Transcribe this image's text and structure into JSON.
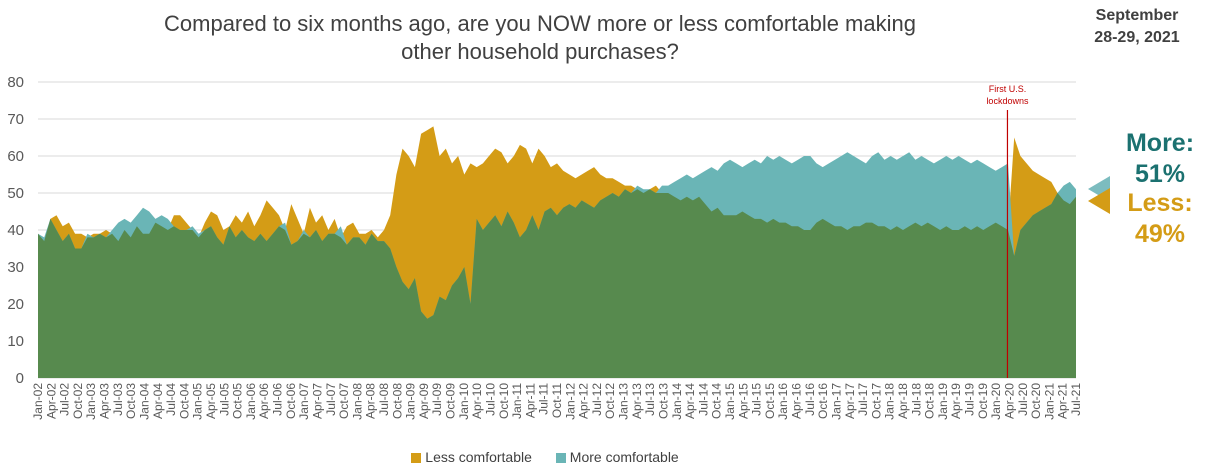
{
  "title_line1": "Compared to six months ago, are you NOW more or less comfortable making",
  "title_line2": "other household purchases?",
  "date_line1": "September",
  "date_line2": "28-29, 2021",
  "callouts": {
    "more": "More:",
    "more_value": "51%",
    "less": "Less:",
    "less_value": "49%"
  },
  "annotation": {
    "line1": "First U.S.",
    "line2": "lockdowns",
    "date": "Apr-20"
  },
  "colors": {
    "less": "#d49c16",
    "more": "#6ab5b6",
    "overlap": "#578a4e",
    "more_text": "#1b7170",
    "annotation": "#c00000",
    "grid": "#d9d9d9",
    "axis_text": "#595959"
  },
  "chart_data": {
    "type": "area",
    "title": "Compared to six months ago, are you NOW more or less comfortable making other household purchases?",
    "ylim": [
      0,
      80
    ],
    "yticks": [
      0,
      10,
      20,
      30,
      40,
      50,
      60,
      70,
      80
    ],
    "grid": true,
    "legend_position": "bottom",
    "x_tick_labels": [
      "Jan-02",
      "Apr-02",
      "Jul-02",
      "Oct-02",
      "Jan-03",
      "Apr-03",
      "Jul-03",
      "Oct-03",
      "Jan-04",
      "Apr-04",
      "Jul-04",
      "Oct-04",
      "Jan-05",
      "Apr-05",
      "Jul-05",
      "Oct-05",
      "Jan-06",
      "Apr-06",
      "Jul-06",
      "Oct-06",
      "Jan-07",
      "Apr-07",
      "Jul-07",
      "Oct-07",
      "Jan-08",
      "Apr-08",
      "Jul-08",
      "Oct-08",
      "Jan-09",
      "Apr-09",
      "Jul-09",
      "Oct-09",
      "Jan-10",
      "Apr-10",
      "Jul-10",
      "Oct-10",
      "Jan-11",
      "Apr-11",
      "Jul-11",
      "Oct-11",
      "Jan-12",
      "Apr-12",
      "Jul-12",
      "Oct-12",
      "Jan-13",
      "Apr-13",
      "Jul-13",
      "Oct-13",
      "Jan-14",
      "Apr-14",
      "Jul-14",
      "Oct-14",
      "Jan-15",
      "Apr-15",
      "Jul-15",
      "Oct-15",
      "Jan-16",
      "Apr-16",
      "Jul-16",
      "Oct-16",
      "Jan-17",
      "Apr-17",
      "Jul-17",
      "Oct-17",
      "Jan-18",
      "Apr-18",
      "Jul-18",
      "Oct-18",
      "Jan-19",
      "Apr-19",
      "Jul-19",
      "Oct-19",
      "Jan-20",
      "Apr-20",
      "Jul-20",
      "Oct-20",
      "Jan-21",
      "Apr-21",
      "Jul-21"
    ],
    "series": [
      {
        "name": "Less comfortable",
        "values": [
          39,
          37,
          43,
          44,
          41,
          42,
          39,
          39,
          38,
          39,
          39,
          40,
          39,
          37,
          40,
          38,
          41,
          39,
          39,
          42,
          41,
          40,
          44,
          44,
          42,
          40,
          38,
          42,
          45,
          44,
          40,
          41,
          44,
          42,
          45,
          41,
          44,
          48,
          46,
          44,
          40,
          47,
          43,
          39,
          46,
          42,
          44,
          40,
          43,
          38,
          41,
          42,
          39,
          39,
          40,
          38,
          40,
          44,
          55,
          62,
          60,
          57,
          66,
          67,
          68,
          60,
          62,
          58,
          60,
          55,
          58,
          57,
          58,
          60,
          62,
          61,
          58,
          60,
          63,
          62,
          58,
          62,
          60,
          57,
          58,
          56,
          55,
          54,
          55,
          56,
          57,
          55,
          54,
          54,
          53,
          52,
          52,
          51,
          50,
          51,
          52,
          50,
          50,
          49,
          48,
          49,
          48,
          49,
          47,
          45,
          46,
          44,
          44,
          44,
          45,
          44,
          43,
          43,
          42,
          43,
          42,
          42,
          41,
          41,
          40,
          40,
          42,
          43,
          42,
          41,
          41,
          40,
          41,
          41,
          42,
          42,
          41,
          41,
          40,
          41,
          40,
          41,
          42,
          41,
          42,
          41,
          40,
          41,
          40,
          40,
          41,
          40,
          41,
          40,
          41,
          42,
          41,
          40,
          65,
          60,
          58,
          56,
          55,
          54,
          53,
          50,
          48,
          47,
          49
        ]
      },
      {
        "name": "More comfortable",
        "values": [
          39,
          38,
          43,
          40,
          37,
          39,
          35,
          35,
          39,
          38,
          39,
          38,
          40,
          42,
          43,
          42,
          44,
          46,
          45,
          43,
          44,
          43,
          41,
          40,
          40,
          41,
          39,
          40,
          41,
          38,
          36,
          41,
          38,
          40,
          38,
          37,
          39,
          37,
          39,
          41,
          42,
          36,
          37,
          40,
          38,
          40,
          37,
          39,
          39,
          41,
          36,
          38,
          38,
          36,
          39,
          37,
          37,
          35,
          30,
          26,
          24,
          27,
          18,
          16,
          17,
          22,
          21,
          25,
          27,
          30,
          20,
          43,
          40,
          42,
          44,
          41,
          45,
          42,
          38,
          40,
          44,
          40,
          45,
          46,
          44,
          46,
          47,
          46,
          48,
          47,
          46,
          48,
          49,
          50,
          49,
          51,
          50,
          52,
          51,
          51,
          50,
          52,
          52,
          53,
          54,
          55,
          54,
          55,
          56,
          57,
          56,
          58,
          59,
          58,
          57,
          58,
          59,
          58,
          60,
          59,
          60,
          59,
          58,
          59,
          60,
          60,
          58,
          57,
          58,
          59,
          60,
          61,
          60,
          59,
          58,
          60,
          61,
          59,
          60,
          59,
          60,
          61,
          59,
          60,
          59,
          58,
          59,
          60,
          59,
          60,
          59,
          58,
          59,
          58,
          57,
          56,
          57,
          58,
          33,
          40,
          42,
          44,
          45,
          46,
          47,
          50,
          52,
          53,
          51
        ]
      }
    ]
  },
  "legend": {
    "less": "Less comfortable",
    "more": "More comfortable"
  }
}
